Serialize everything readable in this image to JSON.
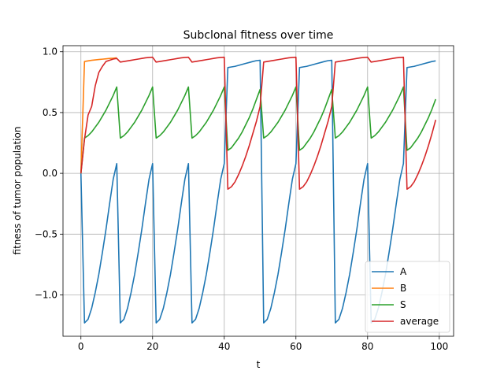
{
  "chart_data": {
    "type": "line",
    "title": "Subclonal fitness over time",
    "xlabel": "t",
    "ylabel": "fitness of tumor population",
    "xlim": [
      -5,
      104
    ],
    "ylim": [
      -1.34,
      1.05
    ],
    "xticks": [
      0,
      20,
      40,
      60,
      80,
      100
    ],
    "yticks": [
      -1.0,
      -0.5,
      0.0,
      0.5,
      1.0
    ],
    "xtick_labels": [
      "0",
      "20",
      "40",
      "60",
      "80",
      "100"
    ],
    "ytick_labels": [
      "−1.0",
      "−0.5",
      "0.0",
      "0.5",
      "1.0"
    ],
    "grid": true,
    "legend_position": "lower-right",
    "series": [
      {
        "name": "A",
        "color": "#1f77b4",
        "x": [
          0,
          1,
          2,
          3,
          4,
          5,
          6,
          7,
          8,
          9,
          10,
          11,
          12,
          13,
          14,
          15,
          16,
          17,
          18,
          19,
          20,
          21,
          22,
          23,
          24,
          25,
          26,
          27,
          28,
          29,
          30,
          31,
          32,
          33,
          34,
          35,
          36,
          37,
          38,
          39,
          40,
          41,
          42,
          43,
          44,
          45,
          46,
          47,
          48,
          49,
          50,
          51,
          52,
          53,
          54,
          55,
          56,
          57,
          58,
          59,
          60,
          61,
          62,
          63,
          64,
          65,
          66,
          67,
          68,
          69,
          70,
          71,
          72,
          73,
          74,
          75,
          76,
          77,
          78,
          79,
          80,
          81,
          82,
          83,
          84,
          85,
          86,
          87,
          88,
          89,
          90,
          91,
          92,
          93,
          94,
          95,
          96,
          97,
          98,
          99
        ],
        "y": [
          0,
          -1.23,
          -1.2,
          -1.11,
          -0.98,
          -0.83,
          -0.65,
          -0.46,
          -0.25,
          -0.05,
          0.08,
          -1.23,
          -1.2,
          -1.11,
          -0.98,
          -0.83,
          -0.65,
          -0.46,
          -0.25,
          -0.05,
          0.08,
          -1.23,
          -1.2,
          -1.11,
          -0.98,
          -0.83,
          -0.65,
          -0.46,
          -0.25,
          -0.05,
          0.08,
          -1.23,
          -1.2,
          -1.11,
          -0.98,
          -0.83,
          -0.65,
          -0.46,
          -0.25,
          -0.05,
          0.08,
          0.87,
          0.875,
          0.88,
          0.888,
          0.896,
          0.904,
          0.912,
          0.92,
          0.927,
          0.93,
          -1.23,
          -1.2,
          -1.11,
          -0.98,
          -0.83,
          -0.65,
          -0.46,
          -0.25,
          -0.05,
          0.08,
          0.87,
          0.875,
          0.88,
          0.888,
          0.896,
          0.904,
          0.912,
          0.92,
          0.927,
          0.93,
          -1.23,
          -1.2,
          -1.11,
          -0.98,
          -0.83,
          -0.65,
          -0.46,
          -0.25,
          -0.05,
          0.08,
          -1.23,
          -1.2,
          -1.11,
          -0.98,
          -0.83,
          -0.65,
          -0.46,
          -0.25,
          -0.05,
          0.08,
          0.87,
          0.875,
          0.88,
          0.888,
          0.896,
          0.904,
          0.912,
          0.92,
          0.925
        ]
      },
      {
        "name": "B",
        "color": "#ff7f0e",
        "x": [
          0,
          1,
          2,
          3,
          4,
          5,
          6,
          7,
          8,
          9,
          10
        ],
        "y": [
          0,
          0.92,
          0.925,
          0.93,
          0.933,
          0.936,
          0.939,
          0.942,
          0.945,
          0.947,
          0.95
        ]
      },
      {
        "name": "S",
        "color": "#2ca02c",
        "x": [
          0,
          1,
          2,
          3,
          4,
          5,
          6,
          7,
          8,
          9,
          10,
          11,
          12,
          13,
          14,
          15,
          16,
          17,
          18,
          19,
          20,
          21,
          22,
          23,
          24,
          25,
          26,
          27,
          28,
          29,
          30,
          31,
          32,
          33,
          34,
          35,
          36,
          37,
          38,
          39,
          40,
          41,
          42,
          43,
          44,
          45,
          46,
          47,
          48,
          49,
          50,
          51,
          52,
          53,
          54,
          55,
          56,
          57,
          58,
          59,
          60,
          61,
          62,
          63,
          64,
          65,
          66,
          67,
          68,
          69,
          70,
          71,
          72,
          73,
          74,
          75,
          76,
          77,
          78,
          79,
          80,
          81,
          82,
          83,
          84,
          85,
          86,
          87,
          88,
          89,
          90,
          91,
          92,
          93,
          94,
          95,
          96,
          97,
          98,
          99
        ],
        "y": [
          0,
          0.29,
          0.31,
          0.34,
          0.38,
          0.42,
          0.47,
          0.52,
          0.58,
          0.64,
          0.71,
          0.29,
          0.31,
          0.34,
          0.38,
          0.42,
          0.47,
          0.52,
          0.58,
          0.64,
          0.71,
          0.29,
          0.31,
          0.34,
          0.38,
          0.42,
          0.47,
          0.52,
          0.58,
          0.64,
          0.71,
          0.29,
          0.31,
          0.34,
          0.38,
          0.42,
          0.47,
          0.52,
          0.58,
          0.64,
          0.71,
          0.19,
          0.21,
          0.25,
          0.29,
          0.34,
          0.4,
          0.46,
          0.53,
          0.61,
          0.69,
          0.29,
          0.31,
          0.34,
          0.38,
          0.42,
          0.47,
          0.52,
          0.58,
          0.64,
          0.71,
          0.19,
          0.21,
          0.25,
          0.29,
          0.34,
          0.4,
          0.46,
          0.53,
          0.61,
          0.69,
          0.29,
          0.31,
          0.34,
          0.38,
          0.42,
          0.47,
          0.52,
          0.58,
          0.64,
          0.71,
          0.29,
          0.31,
          0.34,
          0.38,
          0.42,
          0.47,
          0.52,
          0.58,
          0.64,
          0.71,
          0.19,
          0.21,
          0.25,
          0.29,
          0.34,
          0.4,
          0.46,
          0.53,
          0.61
        ]
      },
      {
        "name": "average",
        "color": "#d62728",
        "x": [
          0,
          1,
          2,
          3,
          4,
          5,
          6,
          7,
          8,
          9,
          10,
          11,
          12,
          13,
          14,
          15,
          16,
          17,
          18,
          19,
          20,
          21,
          22,
          23,
          24,
          25,
          26,
          27,
          28,
          29,
          30,
          31,
          32,
          33,
          34,
          35,
          36,
          37,
          38,
          39,
          40,
          41,
          42,
          43,
          44,
          45,
          46,
          47,
          48,
          49,
          50,
          51,
          52,
          53,
          54,
          55,
          56,
          57,
          58,
          59,
          60,
          61,
          62,
          63,
          64,
          65,
          66,
          67,
          68,
          69,
          70,
          71,
          72,
          73,
          74,
          75,
          76,
          77,
          78,
          79,
          80,
          81,
          82,
          83,
          84,
          85,
          86,
          87,
          88,
          89,
          90,
          91,
          92,
          93,
          94,
          95,
          96,
          97,
          98,
          99
        ],
        "y": [
          0,
          0.28,
          0.48,
          0.55,
          0.72,
          0.83,
          0.88,
          0.92,
          0.93,
          0.94,
          0.945,
          0.915,
          0.92,
          0.925,
          0.93,
          0.935,
          0.94,
          0.945,
          0.95,
          0.953,
          0.955,
          0.915,
          0.92,
          0.925,
          0.93,
          0.935,
          0.94,
          0.945,
          0.95,
          0.953,
          0.955,
          0.915,
          0.92,
          0.925,
          0.93,
          0.935,
          0.94,
          0.945,
          0.95,
          0.953,
          0.955,
          -0.13,
          -0.11,
          -0.07,
          -0.01,
          0.06,
          0.14,
          0.23,
          0.33,
          0.43,
          0.55,
          0.915,
          0.92,
          0.925,
          0.93,
          0.935,
          0.94,
          0.945,
          0.95,
          0.953,
          0.955,
          -0.13,
          -0.11,
          -0.07,
          -0.01,
          0.06,
          0.14,
          0.23,
          0.33,
          0.43,
          0.55,
          0.915,
          0.92,
          0.925,
          0.93,
          0.935,
          0.94,
          0.945,
          0.95,
          0.953,
          0.955,
          0.915,
          0.92,
          0.925,
          0.93,
          0.935,
          0.94,
          0.945,
          0.95,
          0.953,
          0.955,
          -0.13,
          -0.11,
          -0.07,
          -0.01,
          0.06,
          0.14,
          0.23,
          0.33,
          0.44
        ]
      }
    ]
  }
}
